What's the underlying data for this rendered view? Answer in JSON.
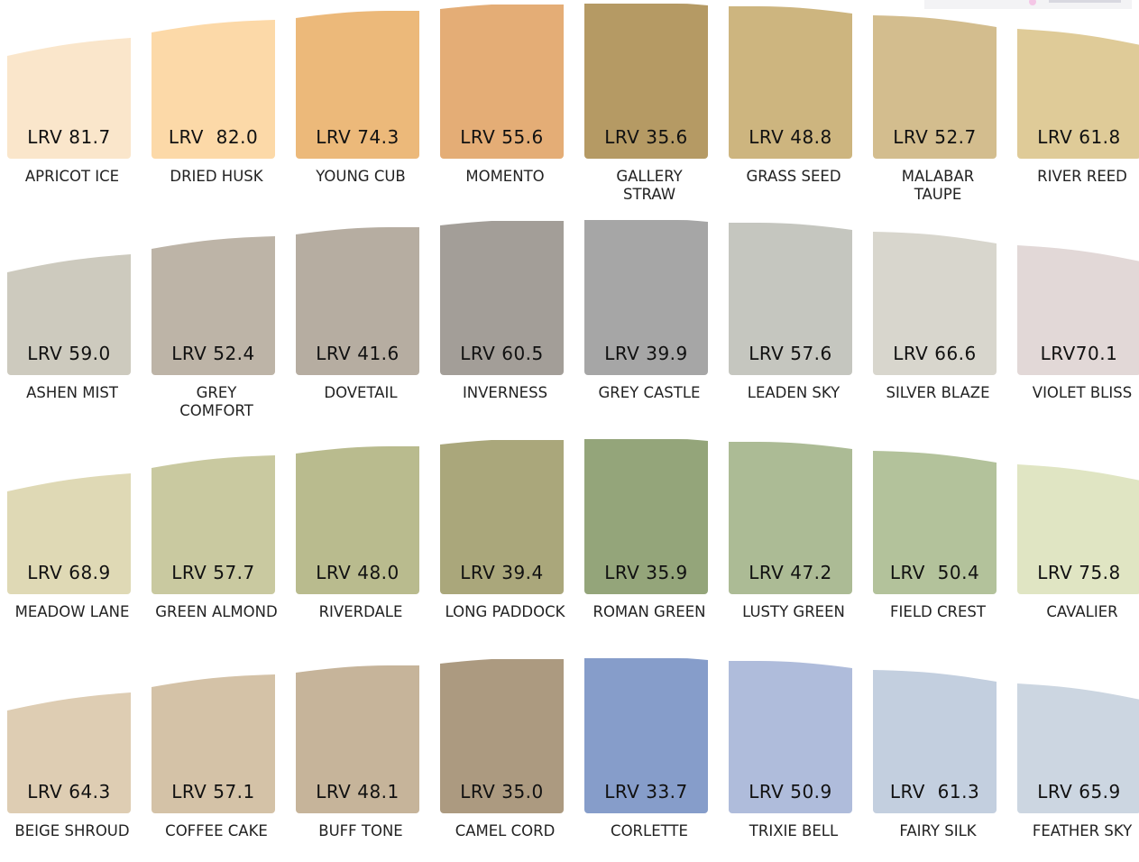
{
  "rows": [
    [
      {
        "name": "APRICOT ICE",
        "lrv": "LRV 81.7",
        "color": "#fae6cb"
      },
      {
        "name": "DRIED HUSK",
        "lrv": "LRV  82.0",
        "color": "#fcd9a8"
      },
      {
        "name": "YOUNG CUB",
        "lrv": "LRV 74.3",
        "color": "#ecb97a"
      },
      {
        "name": "MOMENTO",
        "lrv": "LRV 55.6",
        "color": "#e4ad76"
      },
      {
        "name": "GALLERY\nSTRAW",
        "lrv": "LRV 35.6",
        "color": "#b59a64"
      },
      {
        "name": "GRASS SEED",
        "lrv": "LRV 48.8",
        "color": "#cdb57f"
      },
      {
        "name": "MALABAR\nTAUPE",
        "lrv": "LRV 52.7",
        "color": "#d3bd8e"
      },
      {
        "name": "RIVER REED",
        "lrv": "LRV 61.8",
        "color": "#dfcb98"
      }
    ],
    [
      {
        "name": "ASHEN MIST",
        "lrv": "LRV 59.0",
        "color": "#cdcabe"
      },
      {
        "name": "GREY\nCOMFORT",
        "lrv": "LRV 52.4",
        "color": "#bdb4a7"
      },
      {
        "name": "DOVETAIL",
        "lrv": "LRV 41.6",
        "color": "#b6ada1"
      },
      {
        "name": "INVERNESS",
        "lrv": "LRV 60.5",
        "color": "#a39e98"
      },
      {
        "name": "GREY CASTLE",
        "lrv": "LRV 39.9",
        "color": "#a6a6a6"
      },
      {
        "name": "LEADEN SKY",
        "lrv": "LRV 57.6",
        "color": "#c5c6bf"
      },
      {
        "name": "SILVER BLAZE",
        "lrv": "LRV 66.6",
        "color": "#d8d6cd"
      },
      {
        "name": "VIOLET BLISS",
        "lrv": "LRV70.1",
        "color": "#e2d8d7"
      }
    ],
    [
      {
        "name": "MEADOW LANE",
        "lrv": "LRV 68.9",
        "color": "#dfd9b5"
      },
      {
        "name": "GREEN ALMOND",
        "lrv": "LRV 57.7",
        "color": "#c9c9a0"
      },
      {
        "name": "RIVERDALE",
        "lrv": "LRV 48.0",
        "color": "#b9bb8e"
      },
      {
        "name": "LONG PADDOCK",
        "lrv": "LRV 39.4",
        "color": "#aaa77b"
      },
      {
        "name": "ROMAN GREEN",
        "lrv": "LRV 35.9",
        "color": "#94a57a"
      },
      {
        "name": "LUSTY GREEN",
        "lrv": "LRV 47.2",
        "color": "#acbb95"
      },
      {
        "name": "FIELD CREST",
        "lrv": "LRV  50.4",
        "color": "#b3c29b"
      },
      {
        "name": "CAVALIER",
        "lrv": "LRV 75.8",
        "color": "#e0e5c3"
      }
    ],
    [
      {
        "name": "BEIGE SHROUD",
        "lrv": "LRV 64.3",
        "color": "#decdb3"
      },
      {
        "name": "COFFEE CAKE",
        "lrv": "LRV 57.1",
        "color": "#d4c2a7"
      },
      {
        "name": "BUFF TONE",
        "lrv": "LRV 48.1",
        "color": "#c6b49a"
      },
      {
        "name": "CAMEL CORD",
        "lrv": "LRV 35.0",
        "color": "#ac9a80"
      },
      {
        "name": "CORLETTE",
        "lrv": "LRV 33.7",
        "color": "#869dca"
      },
      {
        "name": "TRIXIE BELL",
        "lrv": "LRV 50.9",
        "color": "#afbcdb"
      },
      {
        "name": "FAIRY SILK",
        "lrv": "LRV  61.3",
        "color": "#c3cfdf"
      },
      {
        "name": "FEATHER SKY",
        "lrv": "LRV 65.9",
        "color": "#ccd6e1"
      }
    ]
  ]
}
